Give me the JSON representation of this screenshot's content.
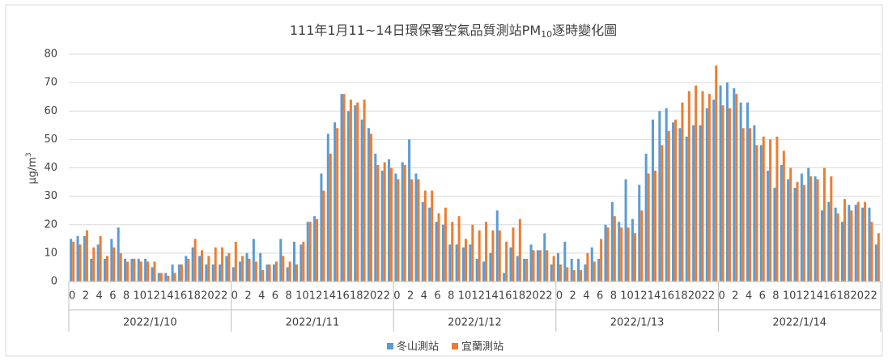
{
  "chart_data": {
    "type": "bar",
    "title": [
      "111年1月11~14日環保署空氣品質測站PM",
      "10",
      "逐時變化圖"
    ],
    "y_label": [
      "μg/m",
      "3"
    ],
    "categories": [
      "0",
      null,
      "2",
      null,
      "4",
      null,
      "6",
      null,
      "8",
      null,
      "10",
      null,
      "12",
      null,
      "14",
      null,
      "16",
      null,
      "18",
      null,
      "20",
      null,
      "22",
      null,
      "0",
      null,
      "2",
      null,
      "4",
      null,
      "6",
      null,
      "8",
      null,
      "10",
      null,
      "12",
      null,
      "14",
      null,
      "16",
      null,
      "18",
      null,
      "20",
      null,
      "22",
      null,
      "0",
      null,
      "2",
      null,
      "4",
      null,
      "6",
      null,
      "8",
      null,
      "10",
      null,
      "12",
      null,
      "14",
      null,
      "16",
      null,
      "18",
      null,
      "20",
      null,
      "22",
      null,
      "0",
      null,
      "2",
      null,
      "4",
      null,
      "6",
      null,
      "8",
      null,
      "10",
      null,
      "12",
      null,
      "14",
      null,
      "16",
      null,
      "18",
      null,
      "20",
      null,
      "22",
      null,
      "0",
      null,
      "2",
      null,
      "4",
      null,
      "6",
      null,
      "8",
      null,
      "10",
      null,
      "12",
      null,
      "14",
      null,
      "16",
      null,
      "18",
      null,
      "20",
      null,
      "22",
      null
    ],
    "groups": [
      "2022/1/10",
      "2022/1/11",
      "2022/1/12",
      "2022/1/13",
      "2022/1/14"
    ],
    "series": [
      {
        "name": "冬山測站",
        "color": "#5b9bd5",
        "values": [
          15,
          16,
          16,
          8,
          13,
          8,
          15,
          19,
          8,
          8,
          8,
          8,
          5,
          3,
          3,
          6,
          6,
          9,
          12,
          9,
          6,
          6,
          6,
          9,
          5,
          7,
          10,
          15,
          10,
          6,
          6,
          15,
          5,
          14,
          13,
          21,
          23,
          38,
          52,
          56,
          66,
          60,
          62,
          57,
          54,
          45,
          39,
          43,
          38,
          42,
          50,
          38,
          28,
          26,
          21,
          20,
          13,
          13,
          12,
          13,
          8,
          7,
          10,
          25,
          3,
          12,
          9,
          8,
          13,
          11,
          17,
          6,
          10,
          14,
          8,
          8,
          6,
          12,
          8,
          20,
          28,
          21,
          36,
          22,
          34,
          45,
          57,
          60,
          61,
          56,
          54,
          51,
          55,
          55,
          61,
          64,
          69,
          70,
          68,
          63,
          63,
          55,
          48,
          39,
          33,
          41,
          36,
          33,
          38,
          40,
          37,
          25,
          28,
          26,
          21,
          27,
          27,
          26,
          26,
          13
        ]
      },
      {
        "name": "宜蘭測站",
        "color": "#ed7d31",
        "values": [
          14,
          13,
          18,
          12,
          16,
          9,
          12,
          10,
          7,
          8,
          7,
          7,
          7,
          3,
          2,
          3,
          6,
          8,
          15,
          11,
          9,
          12,
          12,
          10,
          14,
          9,
          8,
          7,
          4,
          6,
          7,
          9,
          7,
          6,
          14,
          21,
          22,
          32,
          45,
          54,
          66,
          64,
          63,
          64,
          52,
          41,
          42,
          40,
          36,
          41,
          36,
          36,
          32,
          32,
          24,
          26,
          21,
          23,
          15,
          20,
          18,
          21,
          18,
          18,
          14,
          19,
          22,
          8,
          11,
          11,
          11,
          9,
          6,
          5,
          4,
          4,
          10,
          7,
          15,
          19,
          23,
          19,
          19,
          17,
          25,
          38,
          39,
          48,
          53,
          57,
          63,
          67,
          69,
          67,
          66,
          76,
          62,
          61,
          66,
          54,
          54,
          48,
          51,
          50,
          51,
          46,
          40,
          35,
          34,
          37,
          36,
          40,
          37,
          24,
          29,
          25,
          28,
          28,
          21,
          17
        ]
      }
    ],
    "ylim": [
      0,
      80
    ],
    "yticks": [
      0,
      10,
      20,
      30,
      40,
      50,
      60,
      70,
      80
    ],
    "grid": true
  }
}
